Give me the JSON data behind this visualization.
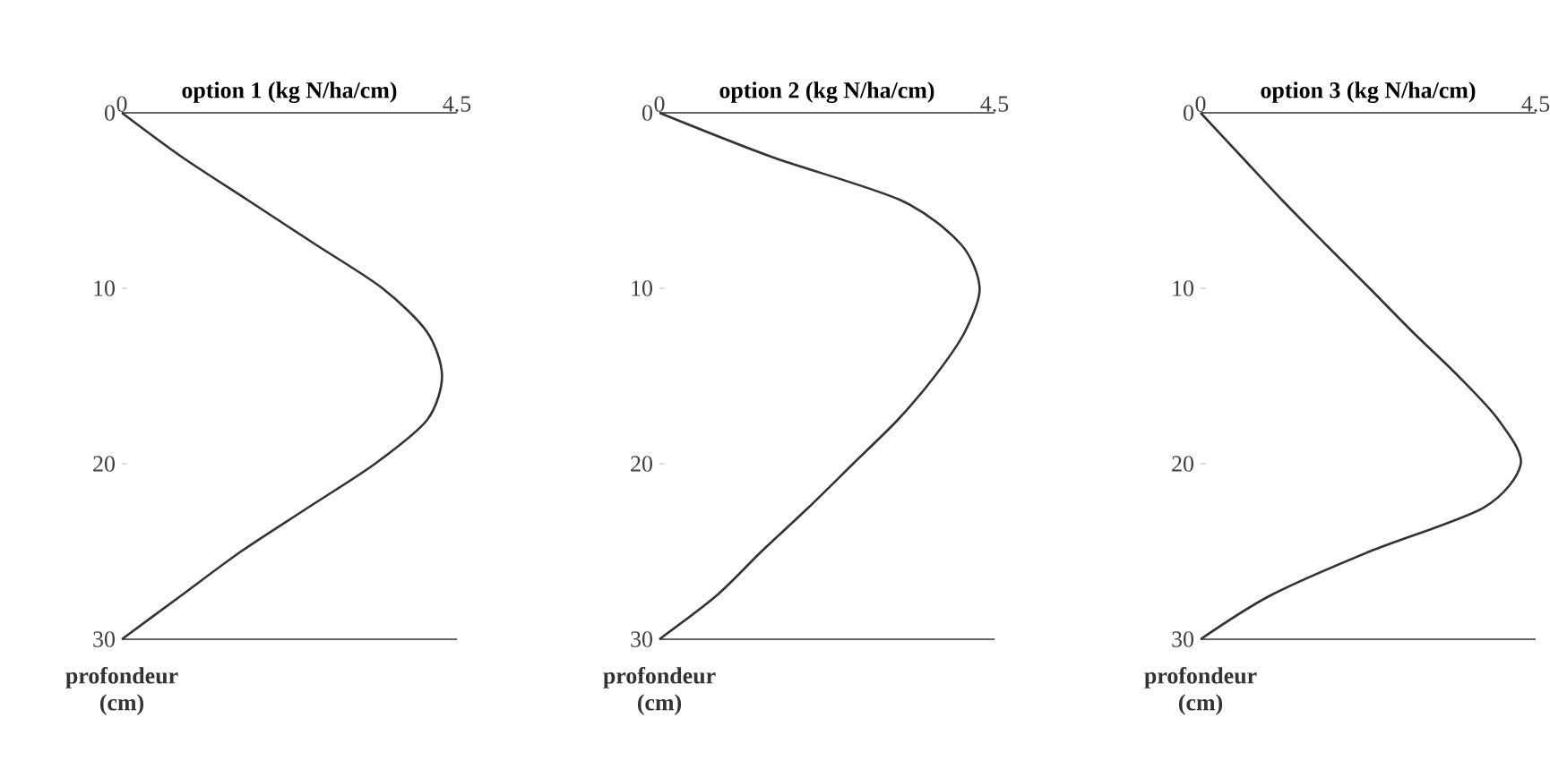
{
  "chart_data": [
    {
      "type": "line",
      "title": "option 1 (kg N/ha/cm)",
      "ylabel": "profondeur (cm)",
      "color": "#333333",
      "xlim": [
        0,
        4.5
      ],
      "xticks": [
        0,
        4.5
      ],
      "ylim": [
        30,
        0
      ],
      "yticks": [
        0,
        10,
        20,
        30
      ],
      "x": [
        0,
        0.8,
        1.7,
        2.6,
        3.5,
        4.1,
        4.3,
        4.1,
        3.4,
        2.5,
        1.6,
        0.8,
        0
      ],
      "values": [
        0,
        2.5,
        5,
        7.5,
        10,
        12.5,
        15,
        17.5,
        20,
        22.5,
        25,
        27.5,
        30
      ]
    },
    {
      "type": "line",
      "title": "option 2 (kg N/ha/cm)",
      "ylabel": "profondeur (cm)",
      "color": "#333333",
      "xlim": [
        0,
        4.5
      ],
      "xticks": [
        0,
        4.5
      ],
      "ylim": [
        30,
        0
      ],
      "yticks": [
        0,
        10,
        20,
        30
      ],
      "x": [
        0,
        1.5,
        3.25,
        4.05,
        4.3,
        4.1,
        3.7,
        3.2,
        2.6,
        2.0,
        1.37,
        0.77,
        0
      ],
      "values": [
        0,
        2.5,
        5,
        7.5,
        10,
        12.5,
        15,
        17.5,
        20,
        22.5,
        25,
        27.5,
        30
      ]
    },
    {
      "type": "line",
      "title": "option 3 (kg N/ha/cm)",
      "ylabel": "profondeur (cm)",
      "color": "#333333",
      "xlim": [
        0,
        4.5
      ],
      "xticks": [
        0,
        4.5
      ],
      "ylim": [
        30,
        0
      ],
      "yticks": [
        0,
        10,
        20,
        30
      ],
      "x": [
        0,
        0.55,
        1.1,
        1.68,
        2.27,
        2.85,
        3.46,
        4.0,
        4.3,
        3.8,
        2.27,
        0.94,
        0
      ],
      "values": [
        0,
        2.5,
        5,
        7.5,
        10,
        12.5,
        15,
        17.5,
        20,
        22.5,
        25,
        27.5,
        30
      ]
    }
  ]
}
